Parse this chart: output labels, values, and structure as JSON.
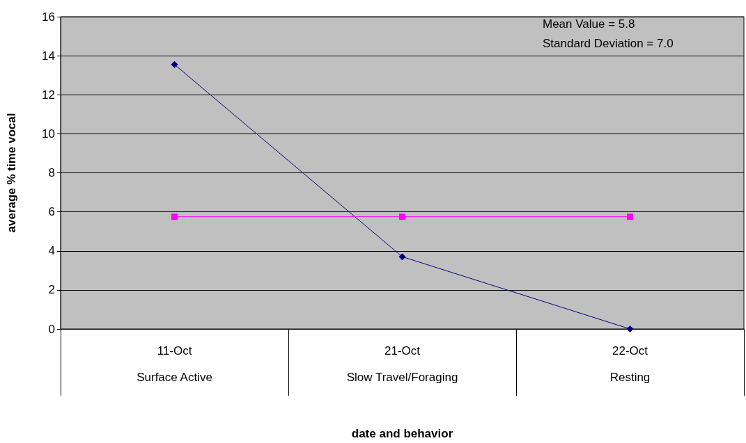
{
  "chart_data": {
    "type": "line",
    "xlabel": "date and behavior",
    "ylabel": "average % time vocal",
    "categories": [
      "11-Oct\n\nSurface Active",
      "21-Oct\n\nSlow Travel/Foraging",
      "22-Oct\n\nResting"
    ],
    "series": [
      {
        "color": "#000080",
        "values": [
          13.55,
          3.7,
          0
        ],
        "marker": "diamond"
      },
      {
        "color": "#ff00ff",
        "values": [
          5.75,
          5.75,
          5.75
        ],
        "marker": "square"
      }
    ],
    "ylim": [
      0,
      16
    ],
    "yticks": [
      0,
      2,
      4,
      6,
      8,
      10,
      12,
      14,
      16
    ],
    "grid": "y",
    "line_style": "solid",
    "annotations": [
      "Mean Value = 5.8",
      "Standard Deviation = 7.0"
    ]
  }
}
